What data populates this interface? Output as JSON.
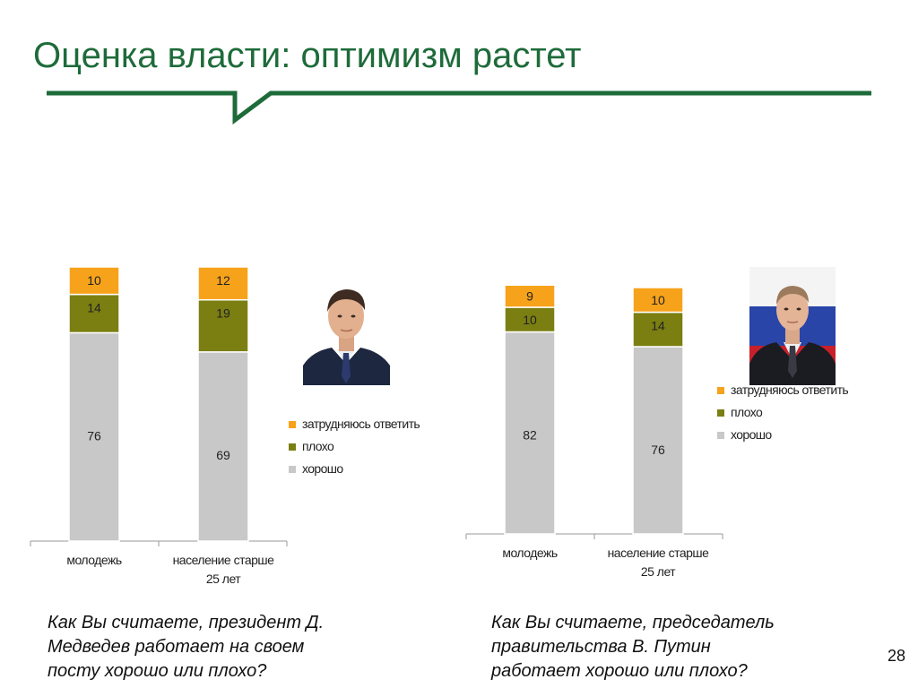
{
  "slide": {
    "title": "Оценка власти: оптимизм растет",
    "page_number": "28",
    "accent_color": "#1e6b3a"
  },
  "colors": {
    "zatrudnyayus": "#f7a21b",
    "ploho": "#7b7f12",
    "horosho": "#c8c8c8"
  },
  "chart_data": [
    {
      "type": "bar",
      "stacked": true,
      "categories": [
        "молодежь",
        "население старше 25 лет"
      ],
      "category_lines": [
        [
          "молодежь"
        ],
        [
          "население старше",
          "25 лет"
        ]
      ],
      "series": [
        {
          "name": "хорошо",
          "values": [
            76,
            69
          ],
          "color": "#c8c8c8"
        },
        {
          "name": "плохо",
          "values": [
            14,
            19
          ],
          "color": "#7b7f12"
        },
        {
          "name": "затрудняюсь ответить",
          "values": [
            10,
            12
          ],
          "color": "#f7a21b"
        }
      ],
      "legend_labels": [
        "затрудняюсь ответить",
        "плохо",
        "хорошо"
      ],
      "legend_colors": [
        "#f7a21b",
        "#7b7f12",
        "#c8c8c8"
      ],
      "legend_position": "right",
      "question": "Как Вы считаете, президент Д.\nМедведев работает  на своем\nпосту хорошо или плохо?",
      "photo_icon": "medvedev-portrait"
    },
    {
      "type": "bar",
      "stacked": true,
      "categories": [
        "молодежь",
        "население старше 25 лет"
      ],
      "category_lines": [
        [
          "молодежь"
        ],
        [
          "население  старше",
          "25 лет"
        ]
      ],
      "series": [
        {
          "name": "хорошо",
          "values": [
            82,
            76
          ],
          "color": "#c8c8c8"
        },
        {
          "name": "плохо",
          "values": [
            10,
            14
          ],
          "color": "#7b7f12"
        },
        {
          "name": "затрудняюсь ответить",
          "values": [
            9,
            10
          ],
          "color": "#f7a21b"
        }
      ],
      "legend_labels": [
        "затрудняюсь ответить",
        "плохо",
        "хорошо"
      ],
      "legend_colors": [
        "#f7a21b",
        "#7b7f12",
        "#c8c8c8"
      ],
      "legend_position": "right",
      "question": "Как Вы считаете, председатель\nправительства В. Путин\nработает хорошо или плохо?",
      "photo_icon": "putin-portrait"
    }
  ]
}
